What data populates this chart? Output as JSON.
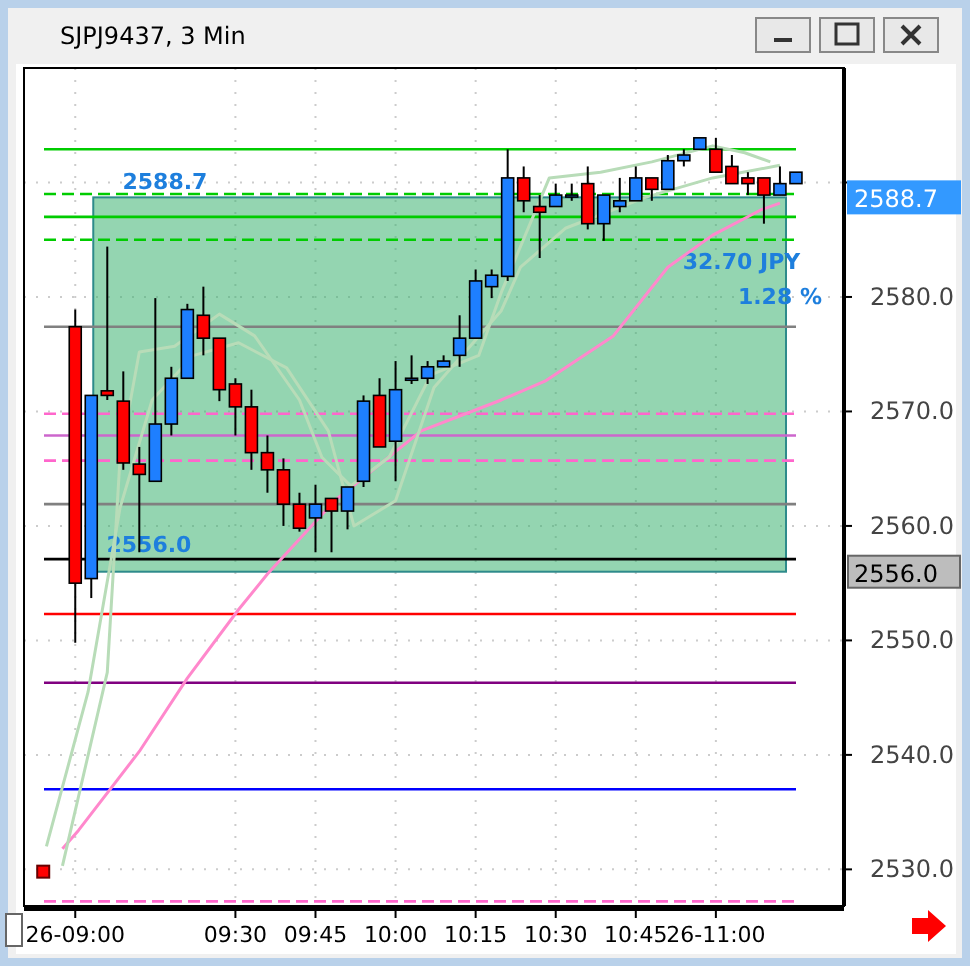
{
  "chart_data": {
    "type": "candlestick",
    "title": "SJPJ9437, 3 Min",
    "x": [
      9,
      9.05,
      9.1,
      9.15,
      9.2,
      9.25,
      9.3,
      9.35,
      9.4,
      9.45,
      9.5,
      9.55,
      9.6,
      9.65,
      9.7,
      9.75,
      9.8,
      9.85,
      9.9,
      9.95,
      10,
      10.05,
      10.1,
      10.15,
      10.2,
      10.25,
      10.3,
      10.35,
      10.4,
      10.45,
      10.5,
      10.55,
      10.6,
      10.65,
      10.7,
      10.75,
      10.8,
      10.85,
      10.9,
      10.95,
      11,
      11.05,
      11.1,
      11.15,
      11.2,
      11.25
    ],
    "ohlc": [
      [
        2577.4,
        2578.9,
        2549.8,
        2555.0
      ],
      [
        2555.4,
        2571.4,
        2553.7,
        2571.4
      ],
      [
        2571.8,
        2584.4,
        2571.0,
        2571.4
      ],
      [
        2570.9,
        2573.5,
        2564.9,
        2565.5
      ],
      [
        2565.4,
        2566.9,
        2557.7,
        2564.5
      ],
      [
        2563.9,
        2579.9,
        2563.9,
        2568.9
      ],
      [
        2568.9,
        2573.9,
        2567.9,
        2572.9
      ],
      [
        2572.9,
        2579.4,
        2572.9,
        2578.9
      ],
      [
        2578.4,
        2580.9,
        2574.9,
        2576.4
      ],
      [
        2576.4,
        2576.4,
        2570.9,
        2571.9
      ],
      [
        2572.4,
        2572.9,
        2567.9,
        2570.4
      ],
      [
        2570.4,
        2571.9,
        2564.9,
        2566.4
      ],
      [
        2566.4,
        2567.9,
        2562.9,
        2564.9
      ],
      [
        2564.9,
        2565.9,
        2560.0,
        2561.9
      ],
      [
        2561.9,
        2562.9,
        2559.5,
        2559.8
      ],
      [
        2560.7,
        2563.6,
        2557.7,
        2561.9
      ],
      [
        2562.4,
        2562.4,
        2557.7,
        2561.3
      ],
      [
        2561.3,
        2563.4,
        2559.7,
        2563.4
      ],
      [
        2563.9,
        2571.4,
        2563.4,
        2570.9
      ],
      [
        2571.4,
        2572.9,
        2566.9,
        2566.9
      ],
      [
        2567.4,
        2574.4,
        2563.9,
        2571.9
      ],
      [
        2572.9,
        2574.9,
        2572.4,
        2572.9
      ],
      [
        2572.9,
        2574.4,
        2572.4,
        2573.9
      ],
      [
        2573.9,
        2574.9,
        2573.9,
        2574.4
      ],
      [
        2574.9,
        2578.4,
        2573.9,
        2576.4
      ],
      [
        2576.4,
        2582.4,
        2576.4,
        2581.4
      ],
      [
        2580.9,
        2582.4,
        2579.9,
        2581.9
      ],
      [
        2581.8,
        2592.9,
        2581.4,
        2590.4
      ],
      [
        2590.4,
        2591.4,
        2587.4,
        2588.4
      ],
      [
        2587.9,
        2588.9,
        2583.4,
        2587.4
      ],
      [
        2587.9,
        2589.9,
        2587.9,
        2588.9
      ],
      [
        2588.9,
        2589.9,
        2588.4,
        2588.9
      ],
      [
        2589.9,
        2591.4,
        2585.9,
        2586.4
      ],
      [
        2586.4,
        2588.9,
        2584.9,
        2588.9
      ],
      [
        2587.9,
        2590.4,
        2587.4,
        2588.4
      ],
      [
        2588.4,
        2591.4,
        2588.4,
        2590.4
      ],
      [
        2590.4,
        2590.4,
        2588.4,
        2589.4
      ],
      [
        2589.4,
        2592.4,
        2589.4,
        2591.9
      ],
      [
        2591.9,
        2592.9,
        2591.4,
        2592.4
      ],
      [
        2592.9,
        2593.9,
        2592.9,
        2593.9
      ],
      [
        2592.9,
        2593.9,
        2590.9,
        2590.9
      ],
      [
        2591.4,
        2592.4,
        2589.9,
        2589.9
      ],
      [
        2590.4,
        2590.9,
        2588.9,
        2589.9
      ],
      [
        2590.4,
        2590.4,
        2586.4,
        2588.9
      ],
      [
        2588.9,
        2591.4,
        2588.9,
        2589.9
      ],
      [
        2589.9,
        2590.9,
        2589.9,
        2590.9
      ]
    ],
    "colors": [
      "#ff0000",
      "#1e7fff",
      "#ff0000",
      "#ff0000",
      "#ff0000",
      "#1e7fff",
      "#1e7fff",
      "#1e7fff",
      "#ff0000",
      "#ff0000",
      "#ff0000",
      "#ff0000",
      "#ff0000",
      "#ff0000",
      "#ff0000",
      "#1e7fff",
      "#ff0000",
      "#1e7fff",
      "#1e7fff",
      "#ff0000",
      "#1e7fff",
      "#1e7fff",
      "#1e7fff",
      "#1e7fff",
      "#1e7fff",
      "#1e7fff",
      "#1e7fff",
      "#1e7fff",
      "#ff0000",
      "#ff0000",
      "#1e7fff",
      "#1e7fff",
      "#ff0000",
      "#1e7fff",
      "#1e7fff",
      "#1e7fff",
      "#ff0000",
      "#1e7fff",
      "#1e7fff",
      "#1e7fff",
      "#ff0000",
      "#ff0000",
      "#ff0000",
      "#ff0000",
      "#1e7fff",
      "#1e7fff"
    ],
    "series": [
      {
        "type": "line",
        "color": "#ff88cc",
        "x": [
          8.96,
          9.01,
          9.2,
          9.35,
          9.51,
          9.6,
          9.81,
          10.08,
          10.33,
          10.47,
          10.68,
          10.85,
          10.99,
          11.14,
          11.2
        ],
        "values": [
          2531.8,
          2533.4,
          2540.3,
          2546.7,
          2552.7,
          2555.8,
          2562.2,
          2568.3,
          2571.0,
          2572.7,
          2576.6,
          2582.6,
          2585.4,
          2587.6,
          2588.2
        ]
      },
      {
        "type": "line",
        "color": "#b8dcb8",
        "x": [
          8.96,
          9.1,
          9.14,
          9.2,
          9.31,
          9.45,
          9.56,
          9.7,
          9.77,
          9.86,
          9.98,
          10.11,
          10.26,
          10.33,
          10.48,
          10.64,
          10.8,
          10.99,
          11.09,
          11.17
        ],
        "values": [
          2530.3,
          2547.2,
          2566.0,
          2575.2,
          2575.7,
          2578.5,
          2576.6,
          2571.0,
          2566.0,
          2563.5,
          2566.0,
          2573.2,
          2574.9,
          2580.4,
          2590.4,
          2590.9,
          2591.8,
          2593.2,
          2592.6,
          2591.8
        ]
      },
      {
        "type": "line",
        "color": "#b8dcb8",
        "x": [
          8.91,
          9.04,
          9.14,
          9.24,
          9.37,
          9.51,
          9.66,
          9.79,
          9.87,
          10.0,
          10.12,
          10.33,
          10.39,
          10.53,
          10.78,
          10.99,
          11.2
        ],
        "values": [
          2532.0,
          2545.5,
          2561.6,
          2571.0,
          2574.9,
          2576.0,
          2573.8,
          2568.3,
          2560.0,
          2562.2,
          2572.1,
          2578.8,
          2582.6,
          2586.0,
          2588.7,
          2590.4,
          2591.5
        ]
      },
      {
        "type": "scatter",
        "color": "#ff0000",
        "marker": "square",
        "x": [
          8.9
        ],
        "values": [
          2529.8
        ]
      }
    ],
    "xlim": [
      8.84,
      11.4
    ],
    "xticks": [
      {
        "value": 9,
        "label": "26-09:00"
      },
      {
        "value": 9.5,
        "label": "09:30"
      },
      {
        "value": 9.75,
        "label": "09:45"
      },
      {
        "value": 10,
        "label": "10:00"
      },
      {
        "value": 10.25,
        "label": "10:15"
      },
      {
        "value": 10.5,
        "label": "10:30"
      },
      {
        "value": 10.75,
        "label": "10:45"
      },
      {
        "value": 11,
        "label": "26-11:00"
      }
    ],
    "ylim": [
      2526.8,
      2600
    ],
    "yticks": [
      {
        "value": 2530,
        "label": "2530.0"
      },
      {
        "value": 2540,
        "label": "2540.0"
      },
      {
        "value": 2550,
        "label": "2550.0"
      },
      {
        "value": 2560,
        "label": "2560.0"
      },
      {
        "value": 2570,
        "label": "2570.0"
      },
      {
        "value": 2580,
        "label": "2580.0"
      },
      {
        "value": 2590,
        "label": null
      }
    ],
    "grid": true,
    "ref_lines": [
      {
        "axis": "y",
        "value": 2592.9,
        "color": "#00cc00"
      },
      {
        "axis": "y",
        "value": 2589.0,
        "color": "#00cc00",
        "line_style": "dashed"
      },
      {
        "axis": "y",
        "value": 2587.0,
        "color": "#00cc00"
      },
      {
        "axis": "y",
        "value": 2585.0,
        "color": "#00cc00",
        "line_style": "dashed"
      },
      {
        "axis": "y",
        "value": 2577.4,
        "color": "#808080"
      },
      {
        "axis": "y",
        "value": 2569.8,
        "color": "#ff66cc",
        "line_style": "dashed"
      },
      {
        "axis": "y",
        "value": 2567.9,
        "color": "#cc66cc"
      },
      {
        "axis": "y",
        "value": 2565.7,
        "color": "#ff66cc",
        "line_style": "dashed"
      },
      {
        "axis": "y",
        "value": 2561.9,
        "color": "#808080"
      },
      {
        "axis": "y",
        "value": 2557.1,
        "color": "#000000"
      },
      {
        "axis": "y",
        "value": 2552.3,
        "color": "#ff0000"
      },
      {
        "axis": "y",
        "value": 2546.3,
        "color": "#800080"
      },
      {
        "axis": "y",
        "value": 2537.0,
        "color": "#0000ff"
      },
      {
        "axis": "y",
        "value": 2527.2,
        "color": "#ff66cc",
        "line_style": "dashed"
      }
    ],
    "bands": [
      {
        "axis": "y",
        "from": 2556.0,
        "to": 2588.7,
        "color": "#3cb371"
      }
    ],
    "annotations": [
      "2588.7",
      "2556.0",
      {
        "text": "2588.7",
        "x": 9.28,
        "y": 2588.7
      },
      {
        "text": "2556.0",
        "x": 9.23,
        "y": 2556.0
      },
      {
        "text": "32.70 JPY",
        "x": 11.08,
        "y": 2584.5
      },
      {
        "text": "1.28 %",
        "x": 11.2,
        "y": 2581.5
      }
    ]
  }
}
